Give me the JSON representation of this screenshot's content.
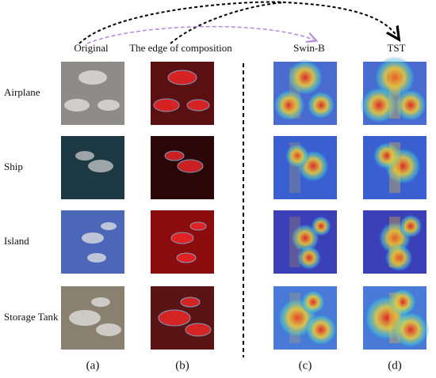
{
  "columns": [
    "Original",
    "The edge of composition",
    "Swin-B",
    "TST"
  ],
  "rows": [
    "Airplane",
    "Ship",
    "Island",
    "Storage Tank"
  ],
  "panels": [
    "(a)",
    "(b)",
    "(c)",
    "(d)"
  ]
}
